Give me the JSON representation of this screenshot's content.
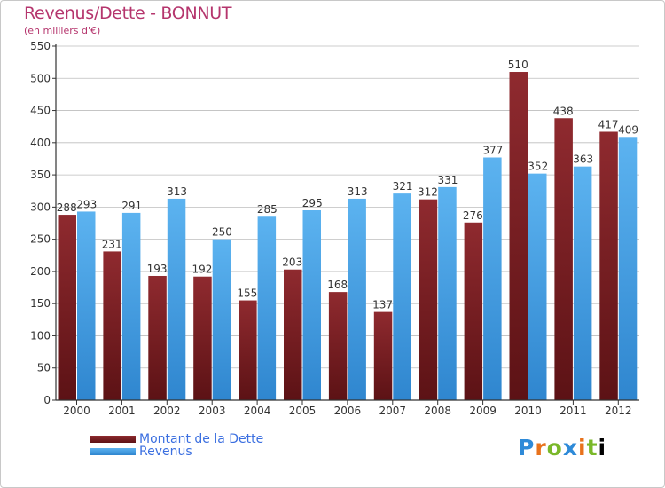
{
  "title": "Revenus/Dette - BONNUT",
  "subtitle": "(en milliers d'€)",
  "colors": {
    "dette": "#7a1f23",
    "revenus": "#4da6ea",
    "axis": "#333333",
    "grid": "#bdbdbd",
    "background": "#ffffff"
  },
  "legend": {
    "dette_label": "Montant de la Dette",
    "revenus_label": "Revenus"
  },
  "logo": {
    "letters": [
      "P",
      "r",
      "o",
      "x",
      "i",
      "t",
      "i"
    ]
  },
  "chart_data": {
    "type": "bar",
    "categories": [
      "2000",
      "2001",
      "2002",
      "2003",
      "2004",
      "2005",
      "2006",
      "2007",
      "2008",
      "2009",
      "2010",
      "2011",
      "2012"
    ],
    "series": [
      {
        "name": "Montant de la Dette",
        "values": [
          288,
          231,
          193,
          192,
          155,
          203,
          168,
          137,
          312,
          276,
          510,
          438,
          417
        ]
      },
      {
        "name": "Revenus",
        "values": [
          293,
          291,
          313,
          250,
          285,
          295,
          313,
          321,
          331,
          377,
          352,
          363,
          409
        ]
      }
    ],
    "ylim": [
      0,
      550
    ],
    "yticks": [
      0,
      50,
      100,
      150,
      200,
      250,
      300,
      350,
      400,
      450,
      500,
      550
    ],
    "grid": true,
    "legend_position": "bottom-left"
  }
}
